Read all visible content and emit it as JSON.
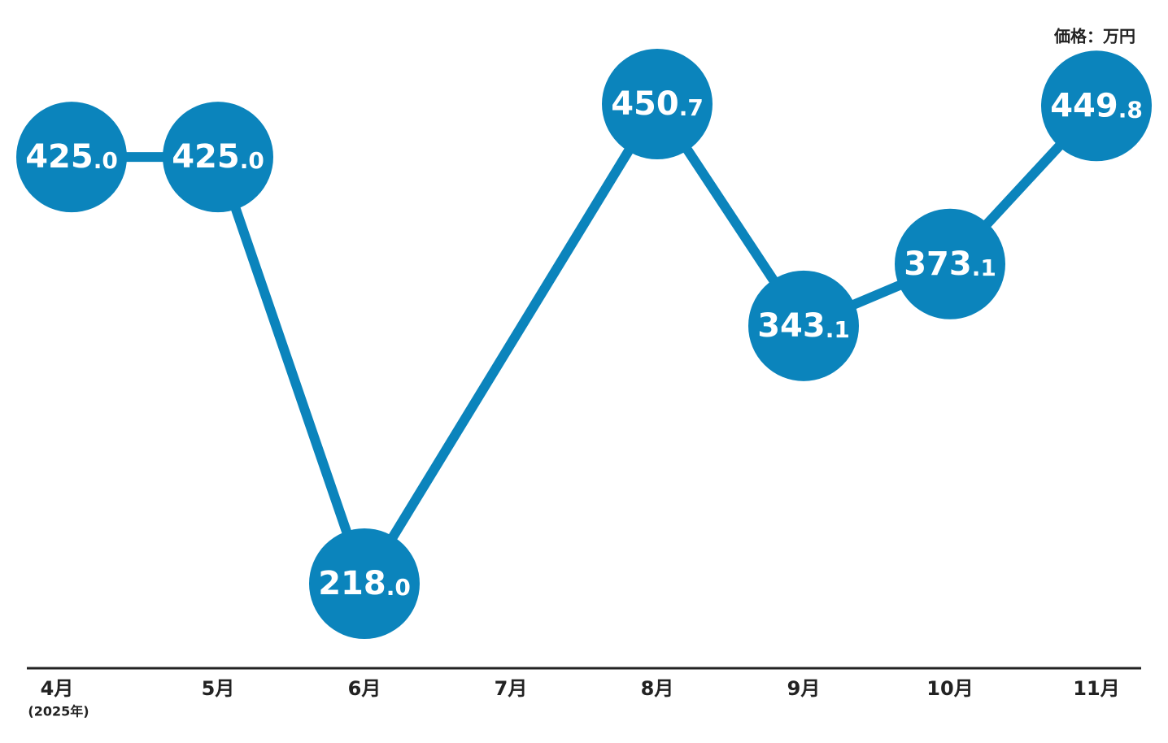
{
  "chart_data": {
    "type": "line",
    "unit_label": "価格：万円",
    "categories": [
      "4月",
      "5月",
      "6月",
      "7月",
      "8月",
      "9月",
      "10月",
      "11月"
    ],
    "first_category_note": "(2025年)",
    "series": [
      {
        "color": "#0b84bc",
        "values": [
          425.0,
          425.0,
          218.0,
          null,
          450.7,
          343.1,
          373.1,
          449.8
        ],
        "value_labels": [
          "425.0",
          "425.0",
          "218.0",
          null,
          "450.7",
          "343.1",
          "373.1",
          "449.8"
        ]
      }
    ]
  }
}
